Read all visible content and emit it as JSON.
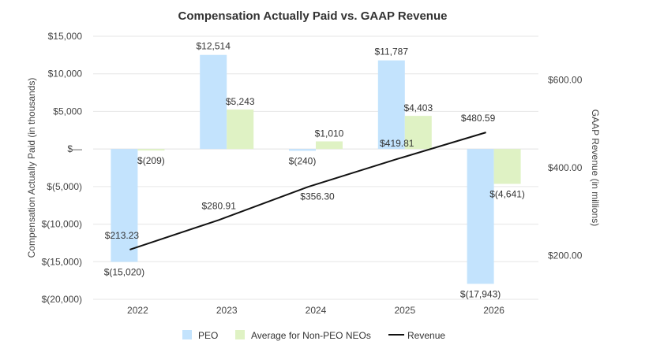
{
  "chart_data": {
    "type": "bar",
    "title": "Compensation Actually Paid vs. GAAP Revenue",
    "categories": [
      "2022",
      "2023",
      "2024",
      "2025",
      "2026"
    ],
    "series": [
      {
        "name": "PEO",
        "kind": "bar",
        "axis": "left",
        "color": "#c3e3fd",
        "values": [
          -15020,
          12514,
          -240,
          11787,
          -17943
        ],
        "labels": [
          "$(15,020)",
          "$12,514",
          "$(240)",
          "$11,787",
          "$(17,943)"
        ]
      },
      {
        "name": "Average for Non-PEO NEOs",
        "kind": "bar",
        "axis": "left",
        "color": "#dff2c4",
        "values": [
          -209,
          5243,
          1010,
          4403,
          -4641
        ],
        "labels": [
          "$(209)",
          "$5,243",
          "$1,010",
          "$4,403",
          "$(4,641)"
        ]
      },
      {
        "name": "Revenue",
        "kind": "line",
        "axis": "right",
        "color": "#111111",
        "values": [
          213.23,
          280.91,
          356.3,
          419.81,
          480.59
        ],
        "labels": [
          "$213.23",
          "$280.91",
          "$356.30",
          "$419.81",
          "$480.59"
        ]
      }
    ],
    "y_left": {
      "label": "Compensation Actually Paid (in thousands)",
      "range": [
        -20000,
        15000
      ],
      "ticks": [
        15000,
        10000,
        5000,
        0,
        -5000,
        -10000,
        -15000,
        -20000
      ],
      "tick_labels": [
        "$15,000",
        "$10,000",
        "$5,000",
        "$—",
        "$(5,000)",
        "$(10,000)",
        "$(15,000)",
        "$(20,000)"
      ]
    },
    "y_right": {
      "label": "GAAP Revenue (in millions)",
      "range": [
        100,
        700
      ],
      "ticks": [
        600,
        400,
        200
      ],
      "tick_labels": [
        "$600.00",
        "$400.00",
        "$200.00"
      ]
    },
    "grid": true,
    "legend_position": "bottom"
  }
}
